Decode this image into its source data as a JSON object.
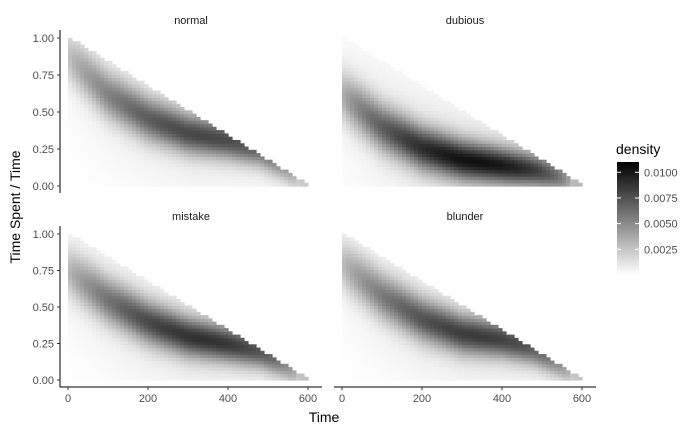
{
  "chart_data": {
    "type": "heatmap",
    "xlabel": "Time",
    "ylabel": "Time Spent / Time",
    "xlim": [
      0,
      600
    ],
    "ylim": [
      0,
      1
    ],
    "x_ticks": [
      0,
      200,
      400,
      600
    ],
    "x_tick_labels": [
      "0",
      "200",
      "400",
      "600"
    ],
    "y_ticks": [
      0,
      0.25,
      0.5,
      0.75,
      1.0
    ],
    "y_tick_labels": [
      "0.00",
      "0.25",
      "0.50",
      "0.75",
      "1.00"
    ],
    "grid": false,
    "legend": {
      "title": "density",
      "placement": "right",
      "range": [
        0,
        0.011
      ],
      "ticks": [
        0.0025,
        0.005,
        0.0075,
        0.01
      ],
      "tick_labels": [
        "0.0025",
        "0.0050",
        "0.0075",
        "0.0100"
      ],
      "low_color": "#ffffff",
      "high_color": "#000000"
    },
    "panels": [
      {
        "name": "normal",
        "peak_density": 0.0085,
        "ridge_y": [
          0.88,
          0.62,
          0.46,
          0.36,
          0.31,
          0.25,
          0.15,
          0.0
        ]
      },
      {
        "name": "dubious",
        "peak_density": 0.011,
        "ridge_y": [
          0.62,
          0.4,
          0.26,
          0.18,
          0.14,
          0.11,
          0.07,
          0.0
        ]
      },
      {
        "name": "mistake",
        "peak_density": 0.0095,
        "ridge_y": [
          0.75,
          0.55,
          0.4,
          0.3,
          0.25,
          0.2,
          0.12,
          0.0
        ]
      },
      {
        "name": "blunder",
        "peak_density": 0.009,
        "ridge_y": [
          0.8,
          0.58,
          0.42,
          0.32,
          0.28,
          0.22,
          0.13,
          0.0
        ]
      }
    ],
    "ridge_x": [
      0,
      100,
      200,
      300,
      400,
      480,
      540,
      600
    ]
  }
}
